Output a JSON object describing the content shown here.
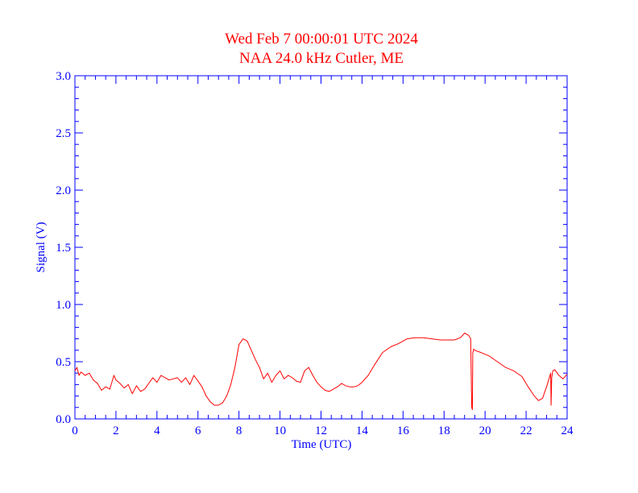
{
  "chart_data": {
    "type": "line",
    "title": "Wed Feb 7 00:00:01 UTC 2024",
    "subtitle": "NAA 24.0 kHz Cutler, ME",
    "xlabel": "Time (UTC)",
    "ylabel": "Signal (V)",
    "xlim": [
      0,
      24
    ],
    "ylim": [
      0,
      3.0
    ],
    "x_ticks": [
      0,
      2,
      4,
      6,
      8,
      10,
      12,
      14,
      16,
      18,
      20,
      22,
      24
    ],
    "x_tick_labels": [
      "0",
      "2",
      "4",
      "6",
      "8",
      "10",
      "12",
      "14",
      "16",
      "18",
      "20",
      "22",
      "24"
    ],
    "y_ticks": [
      0,
      0.5,
      1.0,
      1.5,
      2.0,
      2.5,
      3.0
    ],
    "y_tick_labels": [
      "0.0",
      "0.5",
      "1.0",
      "1.5",
      "2.0",
      "2.5",
      "3.0"
    ],
    "grid": false,
    "axis_color": "#0000ff",
    "title_color": "#ff0000",
    "series": [
      {
        "color": "#ff0000",
        "x": [
          0,
          0.1,
          0.2,
          0.3,
          0.5,
          0.7,
          0.9,
          1.1,
          1.3,
          1.5,
          1.7,
          1.9,
          2.0,
          2.2,
          2.4,
          2.6,
          2.8,
          3.0,
          3.2,
          3.4,
          3.6,
          3.8,
          4.0,
          4.2,
          4.4,
          4.6,
          4.8,
          5.0,
          5.2,
          5.4,
          5.6,
          5.8,
          6.0,
          6.2,
          6.4,
          6.6,
          6.8,
          7.0,
          7.2,
          7.4,
          7.6,
          7.8,
          8.0,
          8.2,
          8.4,
          8.6,
          8.8,
          9.0,
          9.2,
          9.4,
          9.6,
          9.8,
          10.0,
          10.2,
          10.4,
          10.6,
          10.8,
          11.0,
          11.2,
          11.4,
          11.6,
          11.8,
          12.0,
          12.2,
          12.4,
          12.6,
          12.8,
          13.0,
          13.2,
          13.4,
          13.6,
          13.8,
          14.0,
          14.3,
          14.6,
          15.0,
          15.4,
          15.8,
          16.2,
          16.6,
          17.0,
          17.4,
          17.8,
          18.2,
          18.5,
          18.8,
          19.0,
          19.2,
          19.3,
          19.32,
          19.35,
          19.38,
          19.4,
          19.45,
          19.5,
          19.8,
          20.2,
          20.6,
          21.0,
          21.4,
          21.8,
          22.1,
          22.4,
          22.6,
          22.8,
          23.0,
          23.2,
          23.22,
          23.25,
          23.3,
          23.4,
          23.6,
          23.8,
          24.0
        ],
        "values": [
          0.42,
          0.45,
          0.38,
          0.41,
          0.38,
          0.4,
          0.34,
          0.31,
          0.25,
          0.28,
          0.26,
          0.38,
          0.34,
          0.31,
          0.27,
          0.3,
          0.22,
          0.29,
          0.24,
          0.26,
          0.31,
          0.36,
          0.32,
          0.38,
          0.36,
          0.34,
          0.35,
          0.36,
          0.32,
          0.36,
          0.3,
          0.38,
          0.33,
          0.28,
          0.2,
          0.15,
          0.12,
          0.12,
          0.14,
          0.2,
          0.3,
          0.45,
          0.65,
          0.7,
          0.68,
          0.6,
          0.52,
          0.45,
          0.35,
          0.4,
          0.32,
          0.38,
          0.42,
          0.35,
          0.38,
          0.36,
          0.33,
          0.32,
          0.42,
          0.45,
          0.38,
          0.32,
          0.28,
          0.25,
          0.24,
          0.26,
          0.28,
          0.31,
          0.29,
          0.28,
          0.28,
          0.29,
          0.32,
          0.38,
          0.47,
          0.58,
          0.63,
          0.66,
          0.7,
          0.71,
          0.71,
          0.7,
          0.69,
          0.69,
          0.69,
          0.71,
          0.75,
          0.73,
          0.7,
          0.4,
          0.1,
          0.08,
          0.58,
          0.61,
          0.6,
          0.58,
          0.55,
          0.5,
          0.45,
          0.42,
          0.37,
          0.28,
          0.2,
          0.16,
          0.18,
          0.28,
          0.4,
          0.12,
          0.36,
          0.42,
          0.43,
          0.38,
          0.35,
          0.39
        ]
      }
    ]
  }
}
